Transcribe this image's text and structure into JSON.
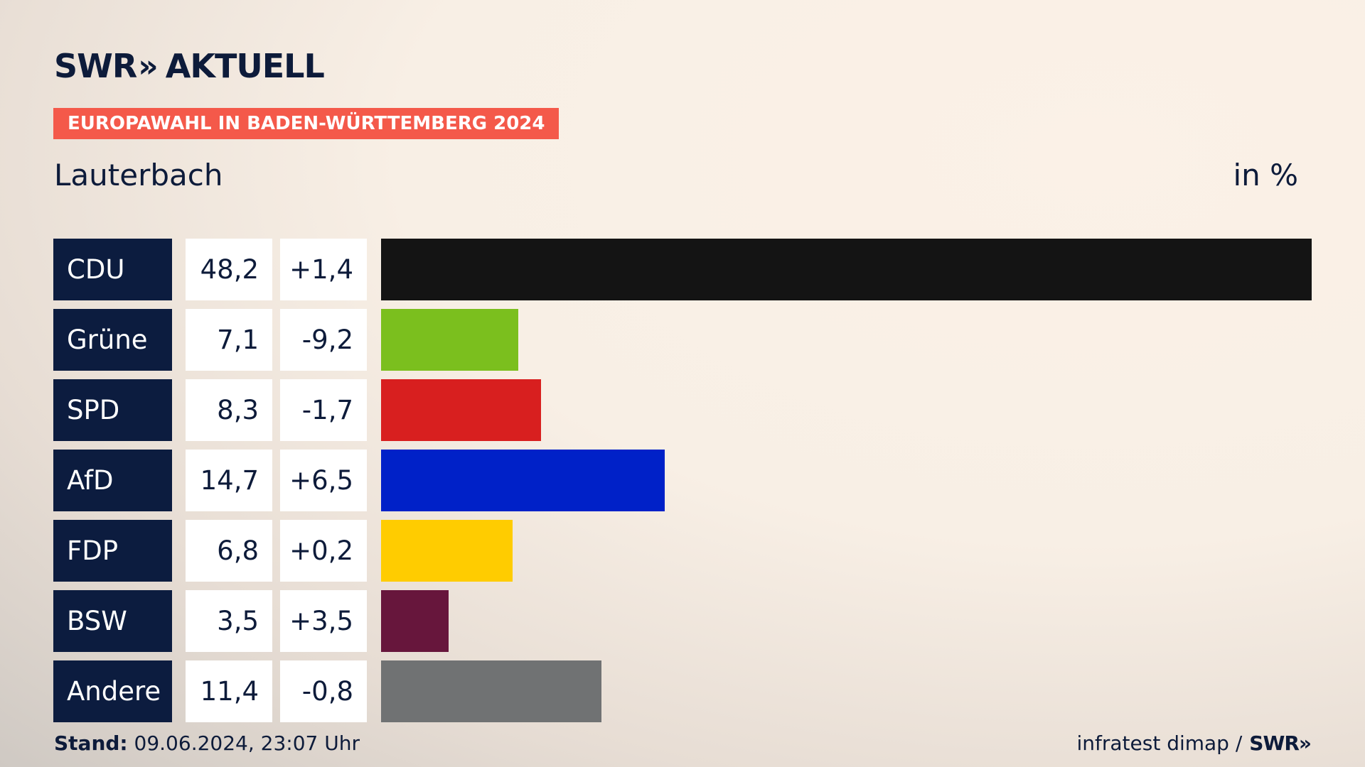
{
  "brand": {
    "swr": "SWR",
    "chev": "»",
    "aktuell": "AKTUELL"
  },
  "badge": "EUROPAWAHL IN BADEN-WÜRTTEMBERG 2024",
  "place": "Lauterbach",
  "unit": "in %",
  "footer": {
    "stand_label": "Stand:",
    "stand_value": "09.06.2024, 23:07 Uhr",
    "source": "infratest dimap /",
    "source_brand": "SWR»"
  },
  "chart_data": {
    "type": "bar",
    "orientation": "horizontal",
    "categories": [
      "CDU",
      "Grüne",
      "SPD",
      "AfD",
      "FDP",
      "BSW",
      "Andere"
    ],
    "values": [
      48.2,
      7.1,
      8.3,
      14.7,
      6.8,
      3.5,
      11.4
    ],
    "value_labels": [
      "48,2",
      "7,1",
      "8,3",
      "14,7",
      "6,8",
      "3,5",
      "11,4"
    ],
    "diffs": [
      1.4,
      -9.2,
      -1.7,
      6.5,
      0.2,
      3.5,
      -0.8
    ],
    "diff_labels": [
      "+1,4",
      "-9,2",
      "-1,7",
      "+6,5",
      "+0,2",
      "+3,5",
      "-0,8"
    ],
    "colors": [
      "#141414",
      "#7bbf1e",
      "#d81f1f",
      "#0021c8",
      "#ffcc00",
      "#67163c",
      "#707273"
    ],
    "xlim": [
      0,
      48.2
    ]
  }
}
